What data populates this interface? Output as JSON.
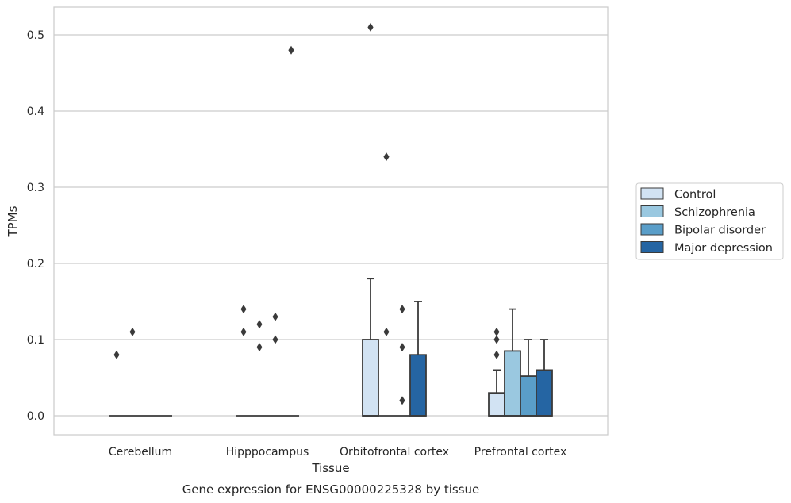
{
  "chart_data": {
    "type": "boxplot",
    "title": "",
    "caption": "Gene expression for ENSG00000225328 by tissue",
    "xlabel": "Tissue",
    "ylabel": "TPMs",
    "ylim": [
      -0.025,
      0.537
    ],
    "yticks": [
      0.0,
      0.1,
      0.2,
      0.3,
      0.4,
      0.5
    ],
    "ytick_labels": [
      "0.0",
      "0.1",
      "0.2",
      "0.3",
      "0.4",
      "0.5"
    ],
    "grid": "horizontal",
    "legend_position": "right",
    "categories": [
      "Cerebellum",
      "Hipppocampus",
      "Orbitofrontal cortex",
      "Prefrontal cortex"
    ],
    "series": [
      {
        "name": "Control",
        "color": "#d2e3f3",
        "boxes": [
          {
            "q1": 0,
            "median": 0,
            "q3": 0,
            "whisker_low": 0,
            "whisker_high": 0,
            "outliers": [
              0.08
            ]
          },
          {
            "q1": 0,
            "median": 0,
            "q3": 0,
            "whisker_low": 0,
            "whisker_high": 0,
            "outliers": [
              0.14,
              0.11
            ]
          },
          {
            "q1": 0,
            "median": 0,
            "q3": 0.1,
            "whisker_low": 0,
            "whisker_high": 0.18,
            "outliers": [
              0.51
            ]
          },
          {
            "q1": 0,
            "median": 0,
            "q3": 0.03,
            "whisker_low": 0,
            "whisker_high": 0.06,
            "outliers": [
              0.11,
              0.1,
              0.08
            ]
          }
        ]
      },
      {
        "name": "Schizophrenia",
        "color": "#9ac8e0",
        "boxes": [
          {
            "q1": 0,
            "median": 0,
            "q3": 0,
            "whisker_low": 0,
            "whisker_high": 0,
            "outliers": [
              0.11
            ]
          },
          {
            "q1": 0,
            "median": 0,
            "q3": 0,
            "whisker_low": 0,
            "whisker_high": 0,
            "outliers": [
              0.12,
              0.09
            ]
          },
          {
            "q1": 0,
            "median": 0,
            "q3": 0,
            "whisker_low": 0,
            "whisker_high": 0,
            "outliers": [
              0.34,
              0.11
            ]
          },
          {
            "q1": 0,
            "median": 0,
            "q3": 0.085,
            "whisker_low": 0,
            "whisker_high": 0.14,
            "outliers": []
          }
        ]
      },
      {
        "name": "Bipolar disorder",
        "color": "#5a9ec9",
        "boxes": [
          {
            "q1": 0,
            "median": 0,
            "q3": 0,
            "whisker_low": 0,
            "whisker_high": 0,
            "outliers": []
          },
          {
            "q1": 0,
            "median": 0,
            "q3": 0,
            "whisker_low": 0,
            "whisker_high": 0,
            "outliers": [
              0.13,
              0.1
            ]
          },
          {
            "q1": 0,
            "median": 0,
            "q3": 0,
            "whisker_low": 0,
            "whisker_high": 0,
            "outliers": [
              0.14,
              0.09,
              0.02
            ]
          },
          {
            "q1": 0,
            "median": 0,
            "q3": 0.052,
            "whisker_low": 0,
            "whisker_high": 0.1,
            "outliers": []
          }
        ]
      },
      {
        "name": "Major depression",
        "color": "#2565a3",
        "boxes": [
          {
            "q1": 0,
            "median": 0,
            "q3": 0,
            "whisker_low": 0,
            "whisker_high": 0,
            "outliers": []
          },
          {
            "q1": 0,
            "median": 0,
            "q3": 0,
            "whisker_low": 0,
            "whisker_high": 0,
            "outliers": [
              0.48
            ]
          },
          {
            "q1": 0,
            "median": 0,
            "q3": 0.08,
            "whisker_low": 0,
            "whisker_high": 0.15,
            "outliers": []
          },
          {
            "q1": 0,
            "median": 0,
            "q3": 0.06,
            "whisker_low": 0,
            "whisker_high": 0.1,
            "outliers": []
          }
        ]
      }
    ]
  }
}
